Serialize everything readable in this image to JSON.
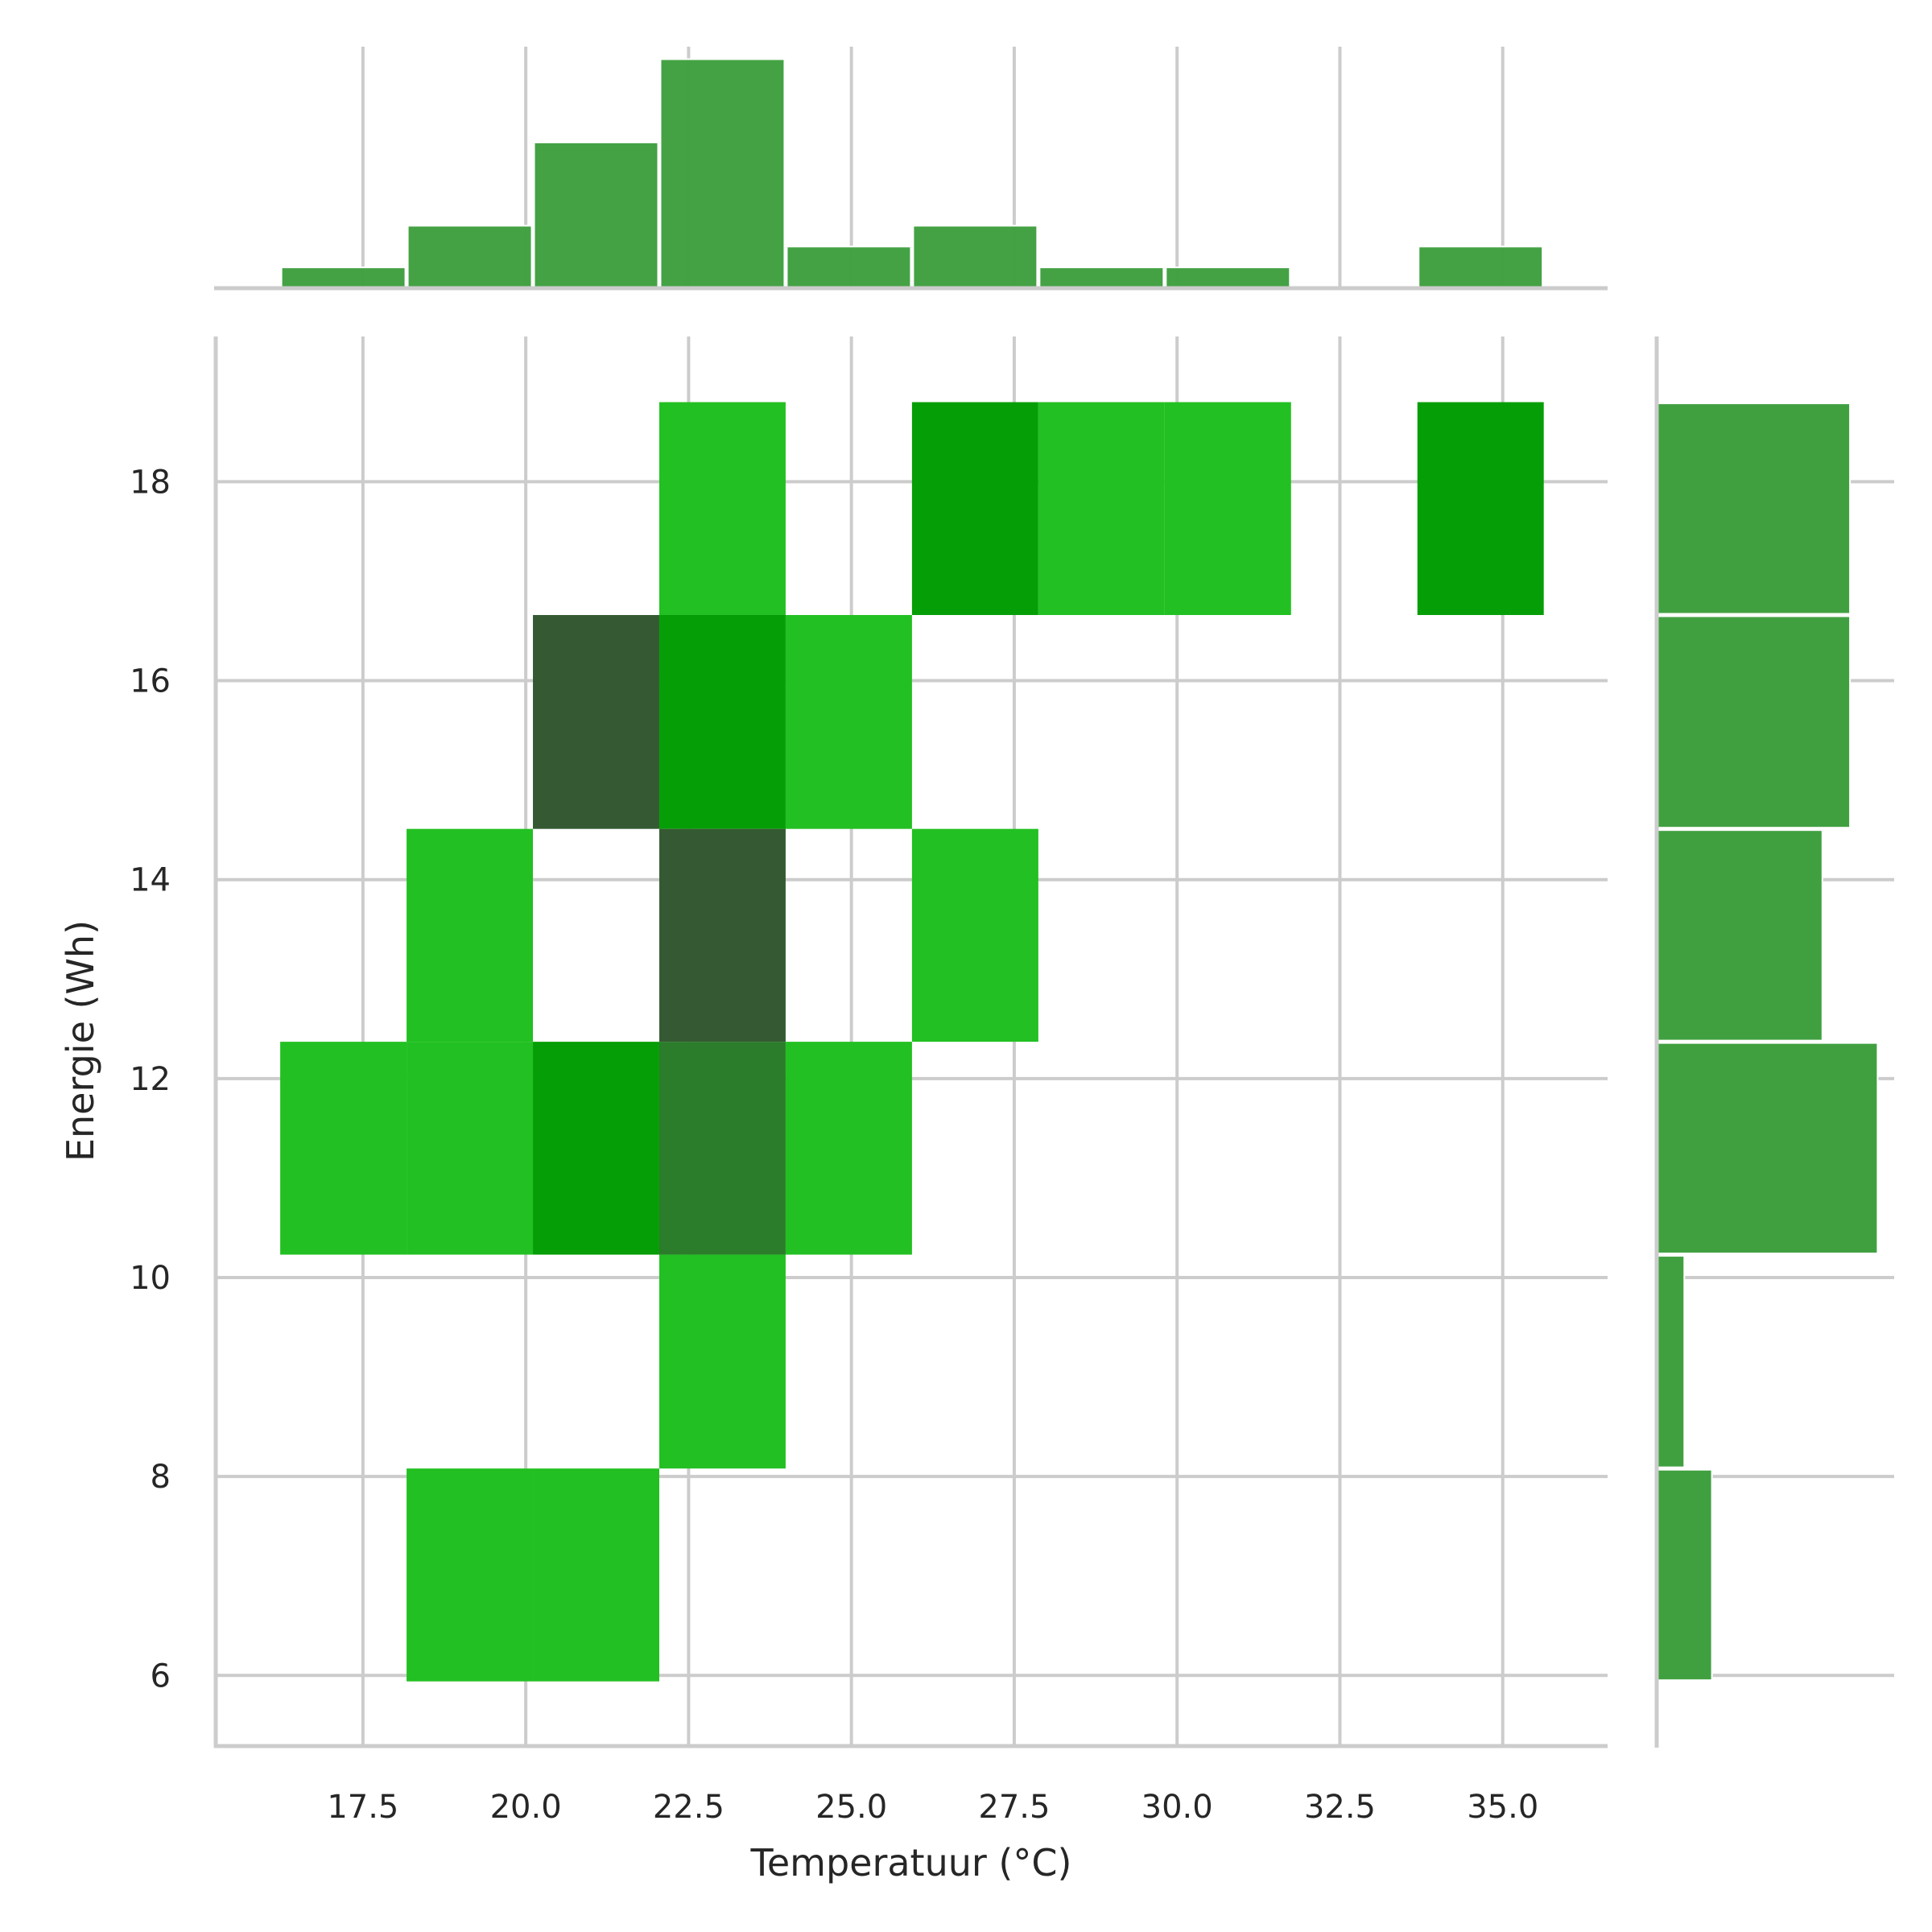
{
  "chart_data": {
    "type": "heatmap",
    "subtype": "jointplot-2d-histogram-with-marginal-histograms",
    "xlabel": "Temperatuur (°C)",
    "ylabel": "Energie (Wh)",
    "xlim": [
      15.24,
      36.61
    ],
    "ylim": [
      5.29,
      19.46
    ],
    "xticks": [
      17.5,
      20.0,
      22.5,
      25.0,
      27.5,
      30.0,
      32.5,
      35.0
    ],
    "xtick_labels": [
      "17.5",
      "20.0",
      "22.5",
      "25.0",
      "27.5",
      "30.0",
      "32.5",
      "35.0"
    ],
    "yticks": [
      6,
      8,
      10,
      12,
      14,
      16,
      18
    ],
    "ytick_labels": [
      "6",
      "8",
      "10",
      "12",
      "14",
      "16",
      "18"
    ],
    "grid": true,
    "x_bin_edges": [
      16.23,
      18.17,
      20.11,
      22.05,
      23.99,
      25.93,
      27.87,
      29.81,
      31.75,
      33.69,
      35.63
    ],
    "y_bin_edges": [
      5.94,
      8.08,
      10.23,
      12.37,
      14.51,
      16.66,
      18.8
    ],
    "cells": [
      {
        "xbin": 3,
        "ybin": 5,
        "count": 1
      },
      {
        "xbin": 5,
        "ybin": 5,
        "count": 2
      },
      {
        "xbin": 6,
        "ybin": 5,
        "count": 1
      },
      {
        "xbin": 7,
        "ybin": 5,
        "count": 1
      },
      {
        "xbin": 9,
        "ybin": 5,
        "count": 2
      },
      {
        "xbin": 2,
        "ybin": 4,
        "count": 4
      },
      {
        "xbin": 3,
        "ybin": 4,
        "count": 2
      },
      {
        "xbin": 4,
        "ybin": 4,
        "count": 1
      },
      {
        "xbin": 1,
        "ybin": 3,
        "count": 1
      },
      {
        "xbin": 3,
        "ybin": 3,
        "count": 4
      },
      {
        "xbin": 5,
        "ybin": 3,
        "count": 1
      },
      {
        "xbin": 0,
        "ybin": 2,
        "count": 1
      },
      {
        "xbin": 1,
        "ybin": 2,
        "count": 1
      },
      {
        "xbin": 2,
        "ybin": 2,
        "count": 2
      },
      {
        "xbin": 3,
        "ybin": 2,
        "count": 3
      },
      {
        "xbin": 4,
        "ybin": 2,
        "count": 1
      },
      {
        "xbin": 3,
        "ybin": 1,
        "count": 1
      },
      {
        "xbin": 1,
        "ybin": 0,
        "count": 1
      },
      {
        "xbin": 2,
        "ybin": 0,
        "count": 1
      }
    ],
    "count_colors": {
      "1": "#22c022",
      "2": "#069e06",
      "3": "#2b7c2b",
      "4": "#355a33"
    },
    "marginal_x": {
      "counts": [
        1,
        3,
        7,
        11,
        2,
        3,
        1,
        1,
        0,
        2
      ],
      "count_lim": [
        0,
        11.6
      ]
    },
    "marginal_y": {
      "counts": [
        2,
        1,
        8,
        6,
        7,
        7
      ],
      "count_lim": [
        0,
        8.6
      ]
    },
    "marginal_color": "#40a040",
    "grid_color": "#cccccc"
  }
}
